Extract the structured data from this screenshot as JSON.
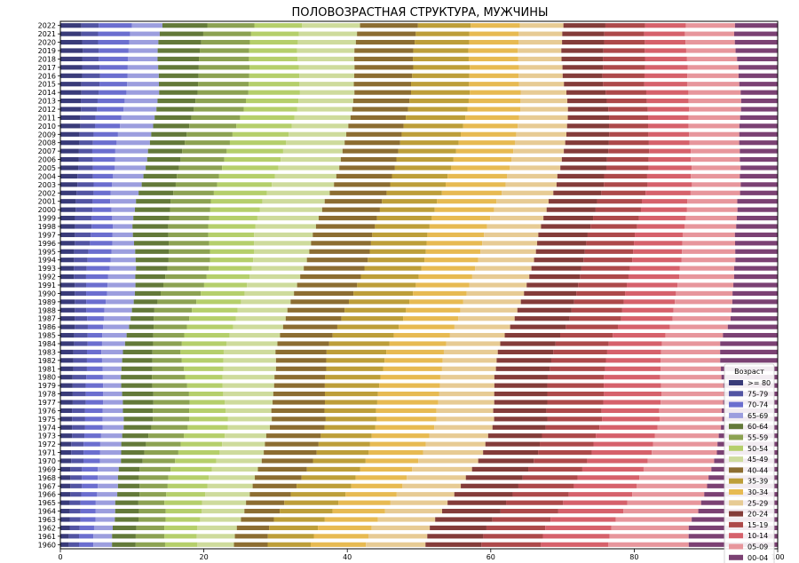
{
  "chart_data": {
    "type": "bar",
    "orientation": "horizontal",
    "stacked": true,
    "normalized": true,
    "title": "ПОЛОВОЗРАСТНАЯ СТРУКТУРА, МУЖЧИНЫ",
    "xlabel": "",
    "ylabel": "",
    "xlim": [
      0,
      100
    ],
    "xticks": [
      0,
      20,
      40,
      60,
      80,
      100
    ],
    "grid": false,
    "legend": {
      "title": "Возраст",
      "position": "bottom-right"
    },
    "categories": [
      "1960",
      "1961",
      "1962",
      "1963",
      "1964",
      "1965",
      "1966",
      "1967",
      "1968",
      "1969",
      "1970",
      "1971",
      "1972",
      "1973",
      "1974",
      "1975",
      "1976",
      "1977",
      "1978",
      "1979",
      "1980",
      "1981",
      "1982",
      "1983",
      "1984",
      "1985",
      "1986",
      "1987",
      "1988",
      "1989",
      "1990",
      "1991",
      "1992",
      "1993",
      "1994",
      "1995",
      "1996",
      "1997",
      "1998",
      "1999",
      "2000",
      "2001",
      "2002",
      "2003",
      "2004",
      "2005",
      "2006",
      "2007",
      "2008",
      "2009",
      "2010",
      "2011",
      "2012",
      "2013",
      "2014",
      "2015",
      "2016",
      "2017",
      "2018",
      "2019",
      "2020",
      "2021",
      "2022"
    ],
    "series": [
      {
        "name": ">= 80",
        "color": "#393b79",
        "values": [
          1.2,
          1.2,
          1.3,
          1.3,
          1.3,
          1.3,
          1.4,
          1.4,
          1.4,
          1.4,
          1.5,
          1.5,
          1.5,
          1.6,
          1.6,
          1.6,
          1.6,
          1.7,
          1.7,
          1.7,
          1.7,
          1.8,
          1.8,
          1.8,
          1.9,
          1.9,
          2.0,
          2.0,
          2.0,
          2.0,
          2.0,
          2.0,
          1.9,
          1.9,
          1.9,
          1.9,
          2.0,
          2.0,
          2.0,
          2.0,
          2.1,
          2.1,
          2.2,
          2.3,
          2.3,
          2.4,
          2.5,
          2.5,
          2.6,
          2.6,
          2.7,
          2.7,
          2.8,
          2.8,
          2.9,
          2.9,
          3.0,
          3.0,
          3.0,
          3.1,
          3.0,
          2.9,
          2.9
        ]
      },
      {
        "name": "75-79",
        "color": "#5254a3",
        "values": [
          1.4,
          1.4,
          1.4,
          1.5,
          1.5,
          1.5,
          1.5,
          1.6,
          1.6,
          1.6,
          1.7,
          1.7,
          1.7,
          1.7,
          1.8,
          1.8,
          1.8,
          1.8,
          1.8,
          1.8,
          1.9,
          1.9,
          1.9,
          1.9,
          1.9,
          1.9,
          1.8,
          1.7,
          1.6,
          1.6,
          1.6,
          1.6,
          1.7,
          1.8,
          1.9,
          2.0,
          2.1,
          2.2,
          2.3,
          2.3,
          2.3,
          2.3,
          2.3,
          2.2,
          2.1,
          2.0,
          1.9,
          1.8,
          1.8,
          1.9,
          2.0,
          2.1,
          2.2,
          2.3,
          2.4,
          2.5,
          2.5,
          2.4,
          2.3,
          2.2,
          2.2,
          2.3,
          2.4
        ]
      },
      {
        "name": "70-74",
        "color": "#6b6ecf",
        "values": [
          2.0,
          2.0,
          2.0,
          2.1,
          2.1,
          2.1,
          2.2,
          2.2,
          2.2,
          2.2,
          2.3,
          2.3,
          2.3,
          2.3,
          2.4,
          2.4,
          2.4,
          2.4,
          2.4,
          2.4,
          2.3,
          2.2,
          2.1,
          2.0,
          2.0,
          2.0,
          2.1,
          2.3,
          2.5,
          2.7,
          2.9,
          3.0,
          3.1,
          3.2,
          3.2,
          3.2,
          3.1,
          3.0,
          2.9,
          2.8,
          2.6,
          2.4,
          2.3,
          2.5,
          2.7,
          2.9,
          3.0,
          3.1,
          3.2,
          3.3,
          3.4,
          3.5,
          3.6,
          3.7,
          3.8,
          3.8,
          3.8,
          3.9,
          4.0,
          4.1,
          4.3,
          4.4,
          4.6
        ]
      },
      {
        "name": "65-69",
        "color": "#9c9ede",
        "values": [
          2.6,
          2.6,
          2.6,
          2.7,
          2.7,
          2.7,
          2.8,
          2.8,
          2.8,
          2.9,
          2.9,
          2.9,
          2.9,
          2.9,
          2.9,
          2.9,
          2.8,
          2.7,
          2.6,
          2.5,
          2.5,
          2.6,
          2.8,
          3.0,
          3.2,
          3.4,
          3.6,
          3.7,
          3.8,
          3.9,
          3.9,
          3.9,
          3.8,
          3.7,
          3.5,
          3.3,
          3.0,
          2.8,
          2.7,
          2.9,
          3.2,
          3.5,
          3.8,
          4.0,
          4.1,
          4.2,
          4.3,
          4.4,
          4.5,
          4.5,
          4.5,
          4.5,
          4.5,
          4.5,
          4.5,
          4.4,
          4.3,
          4.2,
          4.1,
          4.0,
          4.0,
          4.1,
          4.2
        ]
      },
      {
        "name": "60-64",
        "color": "#637939",
        "values": [
          3.3,
          3.3,
          3.3,
          3.3,
          3.3,
          3.2,
          3.1,
          3.0,
          2.9,
          2.9,
          3.0,
          3.2,
          3.4,
          3.6,
          3.8,
          4.0,
          4.1,
          4.2,
          4.3,
          4.3,
          4.3,
          4.3,
          4.2,
          4.1,
          3.9,
          3.7,
          3.4,
          3.2,
          3.1,
          3.3,
          3.6,
          3.9,
          4.2,
          4.4,
          4.6,
          4.7,
          4.8,
          4.9,
          4.9,
          4.9,
          4.8,
          4.7,
          4.7,
          4.6,
          4.5,
          4.5,
          4.5,
          4.6,
          4.7,
          4.8,
          4.9,
          5.0,
          5.1,
          5.2,
          5.3,
          5.4,
          5.5,
          5.6,
          5.7,
          5.8,
          5.9,
          6.0,
          6.2
        ]
      },
      {
        "name": "55-59",
        "color": "#8ca252",
        "values": [
          4.1,
          4.0,
          3.9,
          3.8,
          3.7,
          3.6,
          3.7,
          3.9,
          4.1,
          4.3,
          4.5,
          4.7,
          4.8,
          4.9,
          5.0,
          5.0,
          5.0,
          5.0,
          4.9,
          4.8,
          4.6,
          4.4,
          4.1,
          3.9,
          4.0,
          4.3,
          4.6,
          4.9,
          5.2,
          5.4,
          5.6,
          5.7,
          5.8,
          5.8,
          5.8,
          5.7,
          5.6,
          5.5,
          5.5,
          5.5,
          5.5,
          5.5,
          5.5,
          5.6,
          5.7,
          5.8,
          5.9,
          6.0,
          6.1,
          6.2,
          6.4,
          6.6,
          6.8,
          6.9,
          7.0,
          7.0,
          7.0,
          7.0,
          6.9,
          6.8,
          6.7,
          6.6,
          6.5
        ]
      },
      {
        "name": "50-54",
        "color": "#b5cf6b",
        "values": [
          4.5,
          4.5,
          4.6,
          4.8,
          5.0,
          5.2,
          5.4,
          5.5,
          5.6,
          5.7,
          5.7,
          5.7,
          5.7,
          5.6,
          5.5,
          5.3,
          5.0,
          4.8,
          4.7,
          4.9,
          5.2,
          5.5,
          5.8,
          6.0,
          6.2,
          6.3,
          6.4,
          6.4,
          6.3,
          6.2,
          6.1,
          6.0,
          6.0,
          6.0,
          6.0,
          6.1,
          6.2,
          6.3,
          6.5,
          6.6,
          6.8,
          7.0,
          7.2,
          7.4,
          7.5,
          7.6,
          7.6,
          7.6,
          7.6,
          7.6,
          7.5,
          7.4,
          7.3,
          7.2,
          7.1,
          7.0,
          6.9,
          6.8,
          6.7,
          6.6,
          6.6,
          6.6,
          6.6
        ]
      },
      {
        "name": "45-49",
        "color": "#cedb9c",
        "values": [
          5.1,
          5.3,
          5.5,
          5.7,
          5.9,
          6.1,
          6.2,
          6.3,
          6.4,
          6.4,
          6.3,
          6.1,
          5.9,
          5.7,
          5.8,
          6.0,
          6.3,
          6.6,
          6.9,
          7.1,
          7.2,
          7.3,
          7.3,
          7.2,
          7.1,
          7.0,
          6.9,
          6.9,
          6.9,
          6.9,
          6.9,
          7.0,
          7.1,
          7.3,
          7.5,
          7.7,
          7.9,
          8.1,
          8.3,
          8.4,
          8.5,
          8.5,
          8.5,
          8.4,
          8.3,
          8.2,
          8.1,
          8.0,
          7.9,
          7.8,
          7.7,
          7.6,
          7.5,
          7.5,
          7.5,
          7.5,
          7.6,
          7.7,
          7.8,
          7.9,
          8.0,
          8.0,
          8.0
        ]
      },
      {
        "name": "40-44",
        "color": "#8c6d31",
        "values": [
          4.7,
          4.6,
          4.5,
          4.6,
          4.9,
          5.3,
          5.7,
          6.1,
          6.5,
          6.8,
          7.1,
          7.3,
          7.4,
          7.5,
          7.5,
          7.4,
          7.3,
          7.2,
          7.1,
          7.0,
          7.0,
          7.0,
          7.0,
          7.1,
          7.2,
          7.3,
          7.5,
          7.7,
          7.9,
          8.1,
          8.3,
          8.4,
          8.5,
          8.5,
          8.5,
          8.4,
          8.3,
          8.2,
          8.1,
          8.0,
          7.9,
          7.8,
          7.7,
          7.6,
          7.5,
          7.5,
          7.5,
          7.5,
          7.5,
          7.5,
          7.5,
          7.5,
          7.6,
          7.7,
          7.8,
          7.9,
          8.0,
          8.1,
          8.1,
          8.1,
          8.1,
          8.1,
          8.0
        ]
      },
      {
        "name": "35-39",
        "color": "#bd9e39",
        "values": [
          6.0,
          6.4,
          6.8,
          7.1,
          7.3,
          7.5,
          7.6,
          7.6,
          7.5,
          7.4,
          7.3,
          7.2,
          7.1,
          7.0,
          7.0,
          7.0,
          7.1,
          7.2,
          7.3,
          7.5,
          7.7,
          7.9,
          8.1,
          8.3,
          8.4,
          8.5,
          8.5,
          8.5,
          8.5,
          8.4,
          8.3,
          8.2,
          8.1,
          8.0,
          7.9,
          7.8,
          7.7,
          7.6,
          7.5,
          7.5,
          7.5,
          7.5,
          7.5,
          7.5,
          7.5,
          7.6,
          7.7,
          7.8,
          7.9,
          8.0,
          8.1,
          8.1,
          8.1,
          8.1,
          8.1,
          8.0,
          7.9,
          7.8,
          7.7,
          7.6,
          7.5,
          7.4,
          7.3
        ]
      },
      {
        "name": "30-34",
        "color": "#e7ba52",
        "values": [
          7.7,
          7.6,
          7.5,
          7.4,
          7.3,
          7.2,
          7.1,
          7.1,
          7.1,
          7.2,
          7.3,
          7.5,
          7.7,
          7.9,
          8.1,
          8.2,
          8.3,
          8.4,
          8.4,
          8.4,
          8.3,
          8.2,
          8.1,
          8.0,
          7.9,
          7.8,
          7.7,
          7.6,
          7.5,
          7.5,
          7.5,
          7.5,
          7.5,
          7.5,
          7.5,
          7.6,
          7.7,
          7.8,
          7.9,
          8.0,
          8.1,
          8.1,
          8.1,
          8.1,
          8.0,
          7.9,
          7.8,
          7.7,
          7.6,
          7.5,
          7.4,
          7.3,
          7.2,
          7.1,
          7.0,
          6.9,
          6.8,
          6.8,
          6.8,
          6.8,
          6.8,
          6.8,
          6.8
        ]
      },
      {
        "name": "25-29",
        "color": "#e7cb94",
        "values": [
          8.3,
          8.2,
          8.1,
          8.0,
          7.9,
          7.9,
          8.0,
          8.1,
          8.2,
          8.3,
          8.3,
          8.3,
          8.2,
          8.1,
          8.0,
          7.9,
          7.8,
          7.7,
          7.6,
          7.5,
          7.5,
          7.5,
          7.5,
          7.5,
          7.5,
          7.6,
          7.7,
          7.8,
          7.9,
          8.0,
          8.0,
          8.0,
          8.0,
          7.9,
          7.8,
          7.7,
          7.6,
          7.5,
          7.4,
          7.3,
          7.2,
          7.1,
          7.0,
          6.9,
          6.8,
          6.8,
          6.8,
          6.8,
          6.8,
          6.8,
          6.7,
          6.6,
          6.5,
          6.4,
          6.3,
          6.2,
          6.1,
          6.0,
          6.0,
          6.0,
          6.0,
          6.0,
          6.0
        ]
      },
      {
        "name": "20-24",
        "color": "#843c39",
        "values": [
          7.8,
          7.8,
          7.9,
          8.0,
          8.1,
          8.1,
          8.1,
          8.0,
          7.9,
          7.8,
          7.7,
          7.6,
          7.5,
          7.4,
          7.3,
          7.3,
          7.3,
          7.3,
          7.3,
          7.3,
          7.4,
          7.5,
          7.6,
          7.7,
          7.7,
          7.7,
          7.7,
          7.6,
          7.5,
          7.4,
          7.3,
          7.2,
          7.1,
          7.0,
          6.9,
          6.8,
          6.8,
          6.8,
          6.8,
          6.8,
          6.7,
          6.6,
          6.5,
          6.4,
          6.3,
          6.2,
          6.1,
          6.0,
          5.9,
          5.8,
          5.7,
          5.6,
          5.5,
          5.4,
          5.4,
          5.4,
          5.5,
          5.6,
          5.7,
          5.8,
          5.8,
          5.8,
          5.8
        ]
      },
      {
        "name": "15-19",
        "color": "#ad494a",
        "values": [
          8.3,
          8.3,
          8.2,
          8.1,
          8.0,
          7.9,
          7.8,
          7.7,
          7.6,
          7.5,
          7.4,
          7.4,
          7.4,
          7.4,
          7.4,
          7.5,
          7.6,
          7.7,
          7.8,
          7.8,
          7.8,
          7.7,
          7.6,
          7.5,
          7.4,
          7.3,
          7.2,
          7.1,
          7.0,
          6.9,
          6.8,
          6.8,
          6.8,
          6.8,
          6.8,
          6.7,
          6.6,
          6.5,
          6.4,
          6.3,
          6.2,
          6.1,
          6.0,
          5.9,
          5.8,
          5.7,
          5.6,
          5.5,
          5.4,
          5.3,
          5.3,
          5.3,
          5.4,
          5.5,
          5.6,
          5.7,
          5.8,
          5.8,
          5.8,
          5.7,
          5.6,
          5.5,
          5.5
        ]
      },
      {
        "name": "10-14",
        "color": "#d6616b",
        "values": [
          9.4,
          9.3,
          9.2,
          9.1,
          9.0,
          8.9,
          8.8,
          8.7,
          8.6,
          8.5,
          8.4,
          8.3,
          8.2,
          8.1,
          8.0,
          7.9,
          7.9,
          7.9,
          7.9,
          7.9,
          7.8,
          7.7,
          7.6,
          7.5,
          7.4,
          7.3,
          7.2,
          7.1,
          7.1,
          7.1,
          7.1,
          7.1,
          7.1,
          7.0,
          6.9,
          6.8,
          6.7,
          6.6,
          6.5,
          6.4,
          6.3,
          6.2,
          6.1,
          6.0,
          5.9,
          5.8,
          5.7,
          5.6,
          5.5,
          5.5,
          5.5,
          5.5,
          5.6,
          5.7,
          5.8,
          5.9,
          5.9,
          5.9,
          5.8,
          5.7,
          5.6,
          5.6,
          5.6
        ]
      },
      {
        "name": "05-09",
        "color": "#e7969c",
        "values": [
          11.2,
          11.0,
          10.8,
          10.6,
          10.4,
          10.2,
          10.0,
          9.8,
          9.6,
          9.4,
          9.2,
          9.0,
          8.9,
          8.8,
          8.7,
          8.6,
          8.6,
          8.6,
          8.6,
          8.6,
          8.5,
          8.4,
          8.3,
          8.2,
          8.1,
          8.0,
          8.0,
          8.0,
          8.0,
          8.0,
          7.9,
          7.8,
          7.7,
          7.6,
          7.5,
          7.4,
          7.3,
          7.2,
          7.1,
          7.0,
          6.9,
          6.8,
          6.7,
          6.6,
          6.6,
          6.6,
          6.6,
          6.6,
          6.7,
          6.8,
          6.9,
          7.0,
          7.1,
          7.2,
          7.2,
          7.2,
          7.1,
          7.0,
          6.9,
          6.8,
          6.8,
          6.8,
          6.8
        ]
      },
      {
        "name": "00-04",
        "color": "#7b4173",
        "values": [
          12.4,
          12.4,
          12.4,
          12.0,
          11.0,
          10.6,
          10.2,
          9.8,
          9.6,
          9.2,
          8.8,
          8.4,
          8.3,
          8.1,
          7.8,
          7.6,
          7.7,
          7.5,
          7.4,
          7.5,
          7.8,
          7.9,
          8.0,
          8.0,
          8.0,
          7.6,
          6.9,
          6.5,
          6.4,
          6.3,
          6.3,
          6.2,
          6.1,
          6.1,
          5.9,
          5.9,
          5.9,
          5.9,
          5.7,
          5.6,
          5.5,
          5.5,
          5.1,
          5.0,
          5.1,
          5.0,
          5.1,
          5.1,
          5.2,
          5.2,
          5.2,
          5.1,
          5.0,
          5.0,
          5.1,
          5.3,
          5.4,
          5.4,
          5.6,
          5.8,
          5.9,
          6.0,
          5.9
        ]
      }
    ]
  }
}
